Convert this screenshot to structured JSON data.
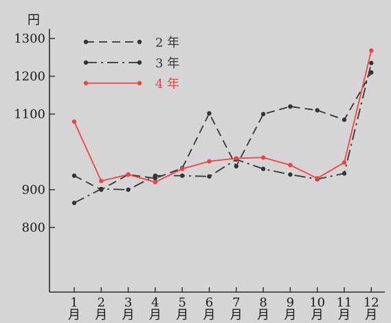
{
  "chart_data": {
    "type": "line",
    "title": "",
    "xlabel": "",
    "ylabel": "円",
    "ylim": [
      650,
      1300
    ],
    "yticks": [
      800,
      900,
      1100,
      1200,
      1300
    ],
    "categories": [
      "1\n月",
      "2\n月",
      "3\n月",
      "4\n月",
      "5\n月",
      "6\n月",
      "7\n月",
      "8\n月",
      "9\n月",
      "10\n月",
      "11\n月",
      "12\n月"
    ],
    "grid": false,
    "legend_position": "top-left",
    "series": [
      {
        "name": "2 年",
        "style": "dashed",
        "color": "#333333",
        "values": [
          937,
          900,
          940,
          930,
          957,
          1102,
          962,
          1100,
          1120,
          1110,
          1085,
          1210
        ]
      },
      {
        "name": "3 年",
        "style": "dashdot",
        "color": "#333333",
        "values": [
          865,
          902,
          900,
          937,
          937,
          935,
          980,
          955,
          940,
          928,
          943,
          1235
        ]
      },
      {
        "name": "4 年",
        "style": "solid",
        "color": "#e8463f",
        "values": [
          1080,
          923,
          940,
          920,
          955,
          975,
          983,
          985,
          965,
          930,
          972,
          1268
        ]
      }
    ]
  }
}
